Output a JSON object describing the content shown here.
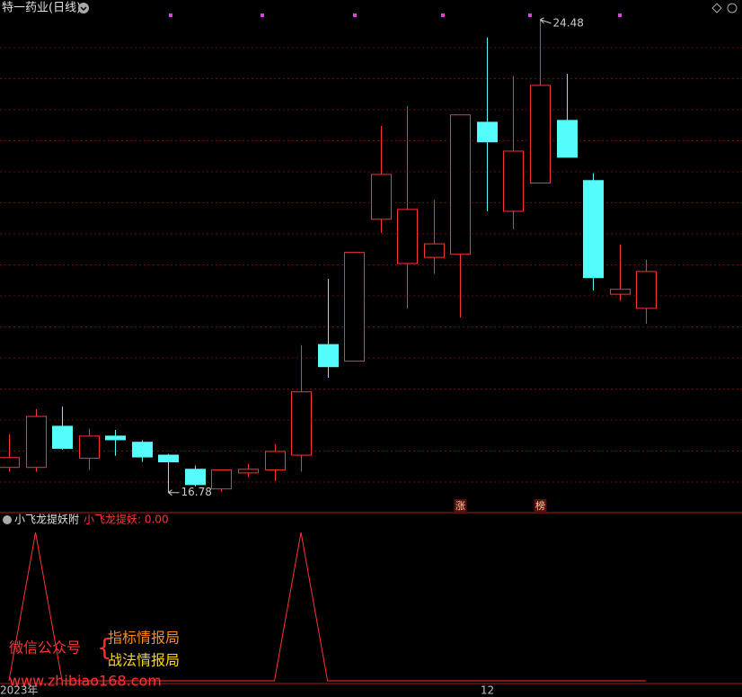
{
  "chart_data": {
    "type": "candlestick",
    "title": "特一药业(日线)",
    "categories": [
      "2023年",
      null,
      null,
      null,
      null,
      null,
      null,
      null,
      null,
      null,
      null,
      null,
      null,
      null,
      null,
      null,
      null,
      null,
      "12",
      null,
      null,
      null,
      null,
      null,
      null
    ],
    "open": [
      17.19,
      17.19,
      17.86,
      17.34,
      17.7,
      17.6,
      17.39,
      17.16,
      16.84,
      17.1,
      17.15,
      17.39,
      19.19,
      18.92,
      21.23,
      20.51,
      20.61,
      20.66,
      22.81,
      21.36,
      21.82,
      22.84,
      21.86,
      20.01,
      19.78
    ],
    "high": [
      17.73,
      18.14,
      18.18,
      17.82,
      17.8,
      17.63,
      17.41,
      17.22,
      17.15,
      17.25,
      17.57,
      19.18,
      20.26,
      20.69,
      22.75,
      23.07,
      21.55,
      22.93,
      24.19,
      23.56,
      24.48,
      23.6,
      21.98,
      20.82,
      20.57
    ],
    "low": [
      17.12,
      17.12,
      17.48,
      17.15,
      17.38,
      17.28,
      16.78,
      16.88,
      16.79,
      17.03,
      16.97,
      17.12,
      18.65,
      18.92,
      21.01,
      19.78,
      20.34,
      19.63,
      21.36,
      21.07,
      21.82,
      22.24,
      20.07,
      19.9,
      19.53
    ],
    "close": [
      17.35,
      18.02,
      17.5,
      17.7,
      17.64,
      17.36,
      17.28,
      16.91,
      17.15,
      17.16,
      17.45,
      18.42,
      18.83,
      20.69,
      21.96,
      21.39,
      20.83,
      22.93,
      22.49,
      22.34,
      23.41,
      22.24,
      20.28,
      20.09,
      20.38
    ],
    "ylim": [
      16.6,
      24.8
    ],
    "up_color": "#ff3232",
    "down_color": "#54fcfc",
    "badges": [
      null,
      null,
      null,
      null,
      null,
      null,
      null,
      null,
      null,
      null,
      null,
      null,
      null,
      null,
      null,
      null,
      null,
      "涨",
      null,
      null,
      "榜",
      null,
      null,
      null,
      null
    ],
    "indicator": {
      "title": "小飞龙提妖附",
      "legend": "小飞龙提妖: 0.00",
      "values": [
        0,
        1,
        0,
        0,
        0,
        0,
        0,
        0,
        0,
        0,
        0,
        1,
        0,
        0,
        0,
        0,
        0,
        0,
        0,
        0,
        0,
        0,
        0,
        0,
        0
      ],
      "ylim": [
        0,
        1
      ],
      "color": "#ff3232"
    }
  },
  "watermark": {
    "label": "微信公众号",
    "lines": [
      "指标情报局",
      "战法情报局"
    ],
    "url": "www.zhibiao168.com"
  }
}
